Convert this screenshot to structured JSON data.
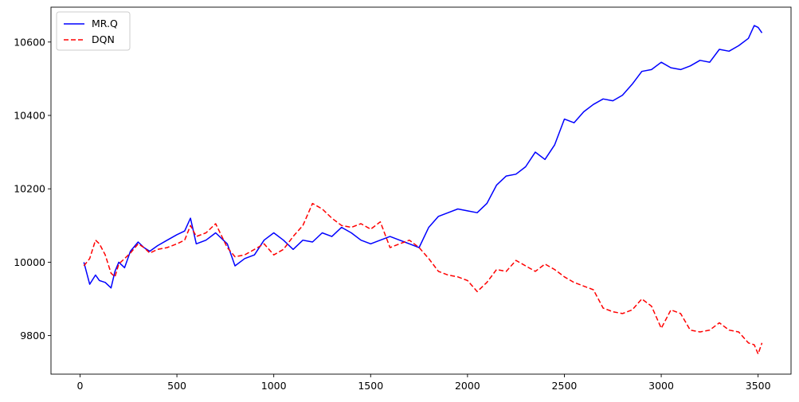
{
  "chart_data": {
    "type": "line",
    "title": "",
    "xlabel": "",
    "ylabel": "",
    "xlim": [
      -150,
      3670
    ],
    "ylim": [
      9695,
      10695
    ],
    "xticks": [
      0,
      500,
      1000,
      1500,
      2000,
      2500,
      3000,
      3500
    ],
    "yticks": [
      9800,
      10000,
      10200,
      10400,
      10600
    ],
    "grid": false,
    "legend": "top-left",
    "series": [
      {
        "name": "MR.Q",
        "color": "#0000ff",
        "dash": "solid",
        "x": [
          20,
          50,
          80,
          100,
          130,
          160,
          180,
          200,
          230,
          260,
          300,
          330,
          360,
          400,
          450,
          500,
          540,
          570,
          600,
          650,
          700,
          760,
          800,
          850,
          900,
          950,
          1000,
          1050,
          1100,
          1150,
          1200,
          1250,
          1300,
          1350,
          1400,
          1450,
          1500,
          1550,
          1600,
          1650,
          1700,
          1750,
          1800,
          1850,
          1900,
          1950,
          2000,
          2050,
          2100,
          2150,
          2200,
          2250,
          2300,
          2350,
          2400,
          2450,
          2500,
          2550,
          2600,
          2650,
          2700,
          2750,
          2800,
          2850,
          2900,
          2950,
          3000,
          3050,
          3100,
          3150,
          3200,
          3250,
          3300,
          3350,
          3400,
          3450,
          3480,
          3500,
          3520
        ],
        "y": [
          10000,
          9940,
          9965,
          9950,
          9945,
          9930,
          9975,
          10000,
          9985,
          10030,
          10055,
          10040,
          10030,
          10045,
          10060,
          10075,
          10085,
          10120,
          10050,
          10060,
          10080,
          10050,
          9990,
          10010,
          10020,
          10060,
          10080,
          10060,
          10035,
          10060,
          10055,
          10080,
          10070,
          10095,
          10080,
          10060,
          10050,
          10060,
          10070,
          10060,
          10050,
          10040,
          10095,
          10125,
          10135,
          10145,
          10140,
          10135,
          10160,
          10210,
          10235,
          10240,
          10260,
          10300,
          10280,
          10320,
          10390,
          10380,
          10410,
          10430,
          10445,
          10440,
          10455,
          10485,
          10520,
          10525,
          10545,
          10530,
          10525,
          10535,
          10550,
          10545,
          10580,
          10575,
          10590,
          10610,
          10645,
          10640,
          10625
        ]
      },
      {
        "name": "DQN",
        "color": "#ff0000",
        "dash": "dashed",
        "x": [
          20,
          50,
          80,
          100,
          130,
          160,
          180,
          200,
          230,
          260,
          300,
          330,
          360,
          400,
          450,
          500,
          540,
          570,
          600,
          650,
          700,
          760,
          800,
          850,
          900,
          950,
          1000,
          1050,
          1100,
          1150,
          1200,
          1250,
          1300,
          1350,
          1400,
          1450,
          1500,
          1550,
          1600,
          1650,
          1700,
          1750,
          1800,
          1850,
          1900,
          1950,
          2000,
          2050,
          2100,
          2150,
          2200,
          2250,
          2300,
          2350,
          2400,
          2450,
          2500,
          2550,
          2600,
          2650,
          2700,
          2750,
          2800,
          2850,
          2900,
          2950,
          3000,
          3050,
          3100,
          3150,
          3200,
          3250,
          3300,
          3350,
          3400,
          3450,
          3480,
          3500,
          3520
        ],
        "y": [
          9990,
          10010,
          10060,
          10050,
          10020,
          9970,
          9960,
          9995,
          10010,
          10025,
          10050,
          10040,
          10025,
          10035,
          10040,
          10050,
          10060,
          10100,
          10070,
          10080,
          10105,
          10040,
          10015,
          10020,
          10035,
          10050,
          10020,
          10035,
          10070,
          10100,
          10160,
          10145,
          10120,
          10100,
          10095,
          10105,
          10090,
          10110,
          10040,
          10050,
          10060,
          10040,
          10010,
          9975,
          9965,
          9960,
          9950,
          9920,
          9945,
          9980,
          9975,
          10005,
          9990,
          9975,
          9995,
          9980,
          9960,
          9945,
          9935,
          9925,
          9875,
          9865,
          9860,
          9870,
          9900,
          9880,
          9820,
          9870,
          9860,
          9815,
          9810,
          9815,
          9835,
          9815,
          9810,
          9780,
          9775,
          9750,
          9780
        ]
      }
    ]
  }
}
